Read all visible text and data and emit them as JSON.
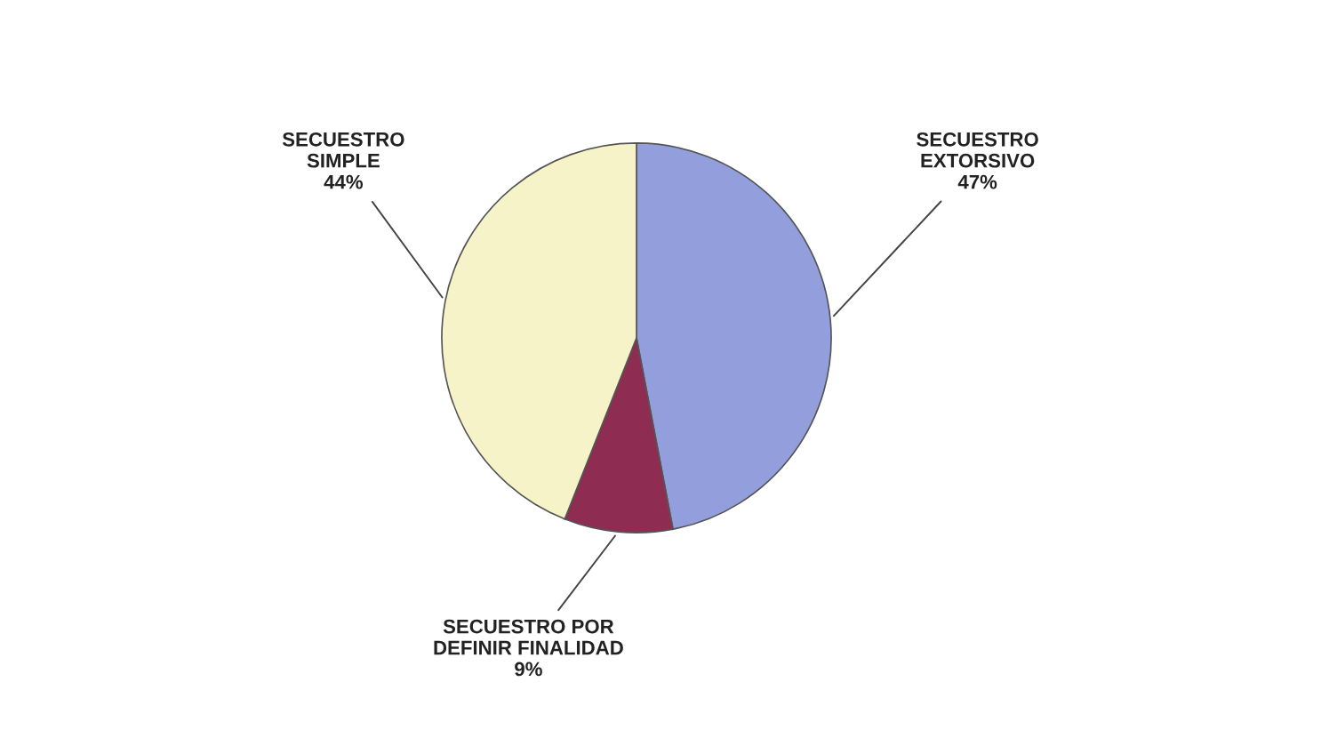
{
  "chart_data": {
    "type": "pie",
    "categories": [
      "SECUESTRO\nEXTORSIVO",
      "SECUESTRO POR\nDEFINIR FINALIDAD",
      "SECUESTRO\nSIMPLE"
    ],
    "values": [
      47,
      9,
      44
    ],
    "colors": [
      "#939fdc",
      "#8e2c52",
      "#f7f3c8"
    ],
    "value_labels": [
      "47%",
      "9%",
      "44%"
    ]
  }
}
